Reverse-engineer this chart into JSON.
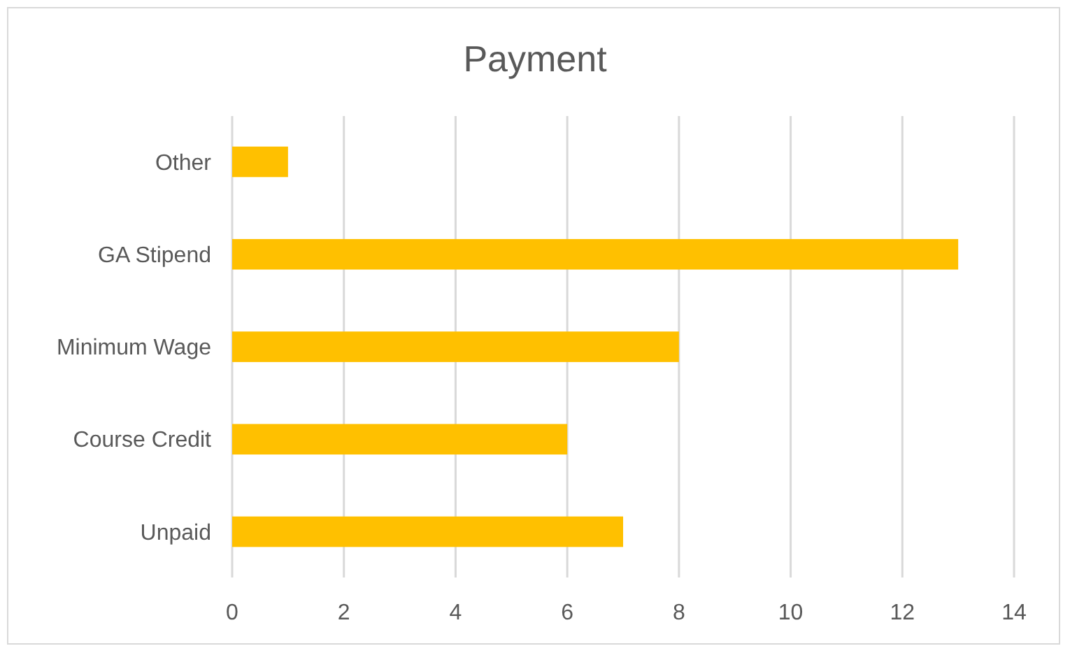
{
  "chart_data": {
    "type": "bar",
    "orientation": "horizontal",
    "title": "Payment",
    "categories": [
      "Other",
      "GA Stipend",
      "Minimum Wage",
      "Course Credit",
      "Unpaid"
    ],
    "values": [
      1,
      13,
      8,
      6,
      7
    ],
    "color": "#ffc000",
    "xlim": [
      0,
      14
    ],
    "xticks": [
      0,
      2,
      4,
      6,
      8,
      10,
      12,
      14
    ],
    "grid": "x"
  }
}
